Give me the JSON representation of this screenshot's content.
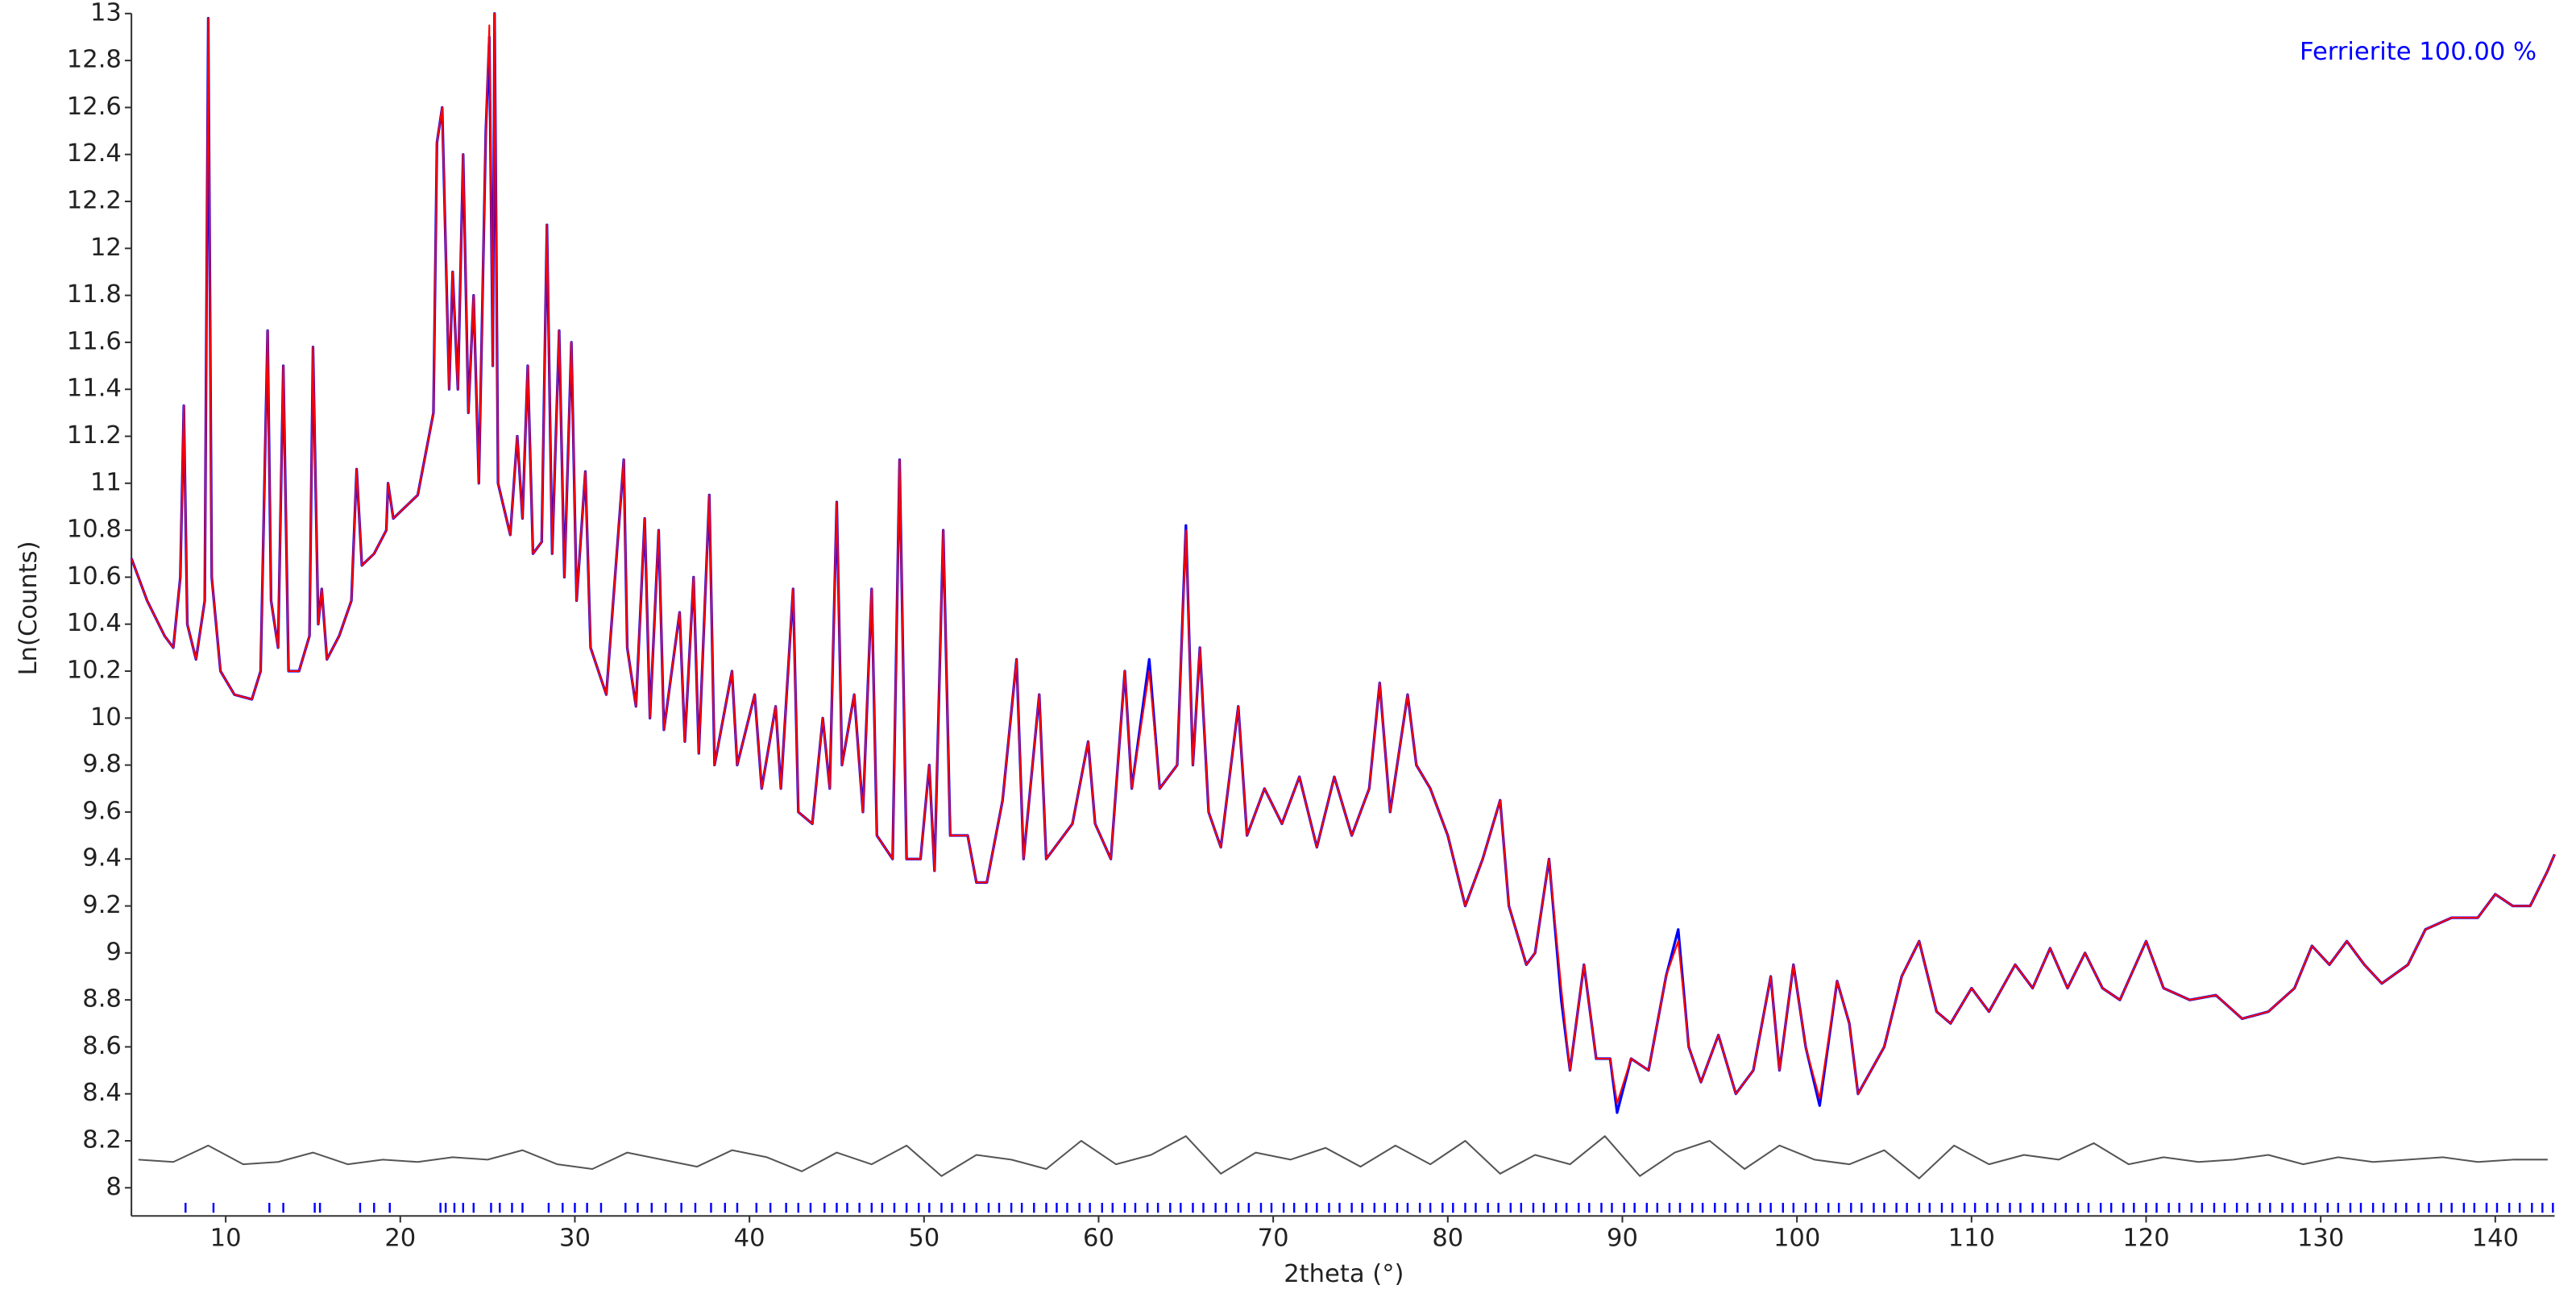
{
  "chart_data": {
    "type": "line",
    "legend_text": "Ferrierite 100.00 %",
    "legend_color": "#0000ff",
    "legend_position": "upper right",
    "xlabel": "2theta (°)",
    "ylabel": "Ln(Counts)",
    "xlim": [
      4.6,
      143.4
    ],
    "ylim": [
      7.88,
      13.0
    ],
    "xticks": [
      10,
      20,
      30,
      40,
      50,
      60,
      70,
      80,
      90,
      100,
      110,
      120,
      130,
      140
    ],
    "yticks": [
      8,
      8.2,
      8.4,
      8.6,
      8.8,
      9,
      9.2,
      9.4,
      9.6,
      9.8,
      10,
      10.2,
      10.4,
      10.6,
      10.8,
      11,
      11.2,
      11.4,
      11.6,
      11.8,
      12,
      12.2,
      12.4,
      12.6,
      12.8,
      13
    ],
    "x": [
      4.6,
      5.5,
      6.5,
      7.0,
      7.4,
      7.6,
      7.8,
      8.3,
      8.8,
      9.0,
      9.2,
      9.7,
      10.5,
      11.5,
      12.0,
      12.4,
      12.6,
      13.0,
      13.3,
      13.6,
      14.2,
      14.8,
      15.0,
      15.3,
      15.5,
      15.8,
      16.5,
      17.2,
      17.5,
      17.8,
      18.5,
      19.2,
      19.3,
      19.6,
      21.0,
      21.9,
      22.1,
      22.4,
      22.8,
      23.0,
      23.3,
      23.6,
      23.9,
      24.2,
      24.5,
      24.9,
      25.1,
      25.3,
      25.4,
      25.6,
      26.3,
      26.7,
      27.0,
      27.3,
      27.6,
      28.1,
      28.4,
      28.7,
      29.1,
      29.4,
      29.8,
      30.1,
      30.6,
      30.9,
      31.8,
      32.8,
      33.0,
      33.5,
      34.0,
      34.3,
      34.8,
      35.1,
      36.0,
      36.3,
      36.8,
      37.1,
      37.7,
      38.0,
      39.0,
      39.3,
      40.3,
      40.7,
      41.5,
      41.8,
      42.5,
      42.8,
      43.6,
      44.2,
      44.6,
      45.0,
      45.3,
      46.0,
      46.5,
      47.0,
      47.3,
      48.2,
      48.6,
      49.0,
      49.8,
      50.3,
      50.6,
      51.1,
      51.5,
      52.5,
      53.0,
      53.6,
      54.5,
      55.3,
      55.7,
      56.6,
      57.0,
      58.5,
      59.4,
      59.8,
      60.7,
      61.5,
      61.9,
      62.9,
      63.5,
      64.5,
      65.0,
      65.4,
      65.8,
      66.3,
      67.0,
      68.0,
      68.5,
      69.5,
      70.5,
      71.5,
      72.5,
      73.5,
      74.5,
      75.5,
      76.1,
      76.7,
      77.7,
      78.2,
      79.0,
      80.0,
      81.0,
      82.0,
      83.0,
      83.5,
      84.5,
      85.0,
      85.8,
      86.5,
      87.0,
      87.8,
      88.5,
      89.3,
      89.7,
      90.5,
      91.5,
      92.5,
      93.2,
      93.8,
      94.5,
      95.5,
      96.5,
      97.5,
      98.5,
      99.0,
      99.8,
      100.5,
      101.3,
      102.3,
      103.0,
      103.5,
      105.0,
      106.0,
      107.0,
      108.0,
      108.8,
      110.0,
      111.0,
      112.5,
      113.5,
      114.5,
      115.5,
      116.5,
      117.5,
      118.5,
      120.0,
      121.0,
      122.5,
      124.0,
      125.5,
      127.0,
      128.5,
      129.5,
      130.5,
      131.5,
      132.5,
      133.5,
      135.0,
      136.0,
      137.5,
      139.0,
      140.0,
      141.0,
      142.0,
      143.0,
      143.4
    ],
    "series": [
      {
        "color": "#0000ff",
        "values": [
          10.68,
          10.5,
          10.35,
          10.3,
          10.6,
          11.33,
          10.4,
          10.25,
          10.5,
          12.98,
          10.6,
          10.2,
          10.1,
          10.08,
          10.2,
          11.65,
          10.5,
          10.3,
          11.5,
          10.2,
          10.2,
          10.35,
          11.58,
          10.4,
          10.55,
          10.25,
          10.35,
          10.5,
          11.06,
          10.65,
          10.7,
          10.8,
          11.0,
          10.85,
          10.95,
          11.3,
          12.45,
          12.6,
          11.4,
          11.9,
          11.4,
          12.4,
          11.3,
          11.8,
          11.0,
          12.5,
          12.9,
          11.5,
          13.0,
          11.0,
          10.78,
          11.2,
          10.85,
          11.5,
          10.7,
          10.75,
          12.1,
          10.7,
          11.65,
          10.6,
          11.6,
          10.5,
          11.05,
          10.3,
          10.1,
          11.1,
          10.3,
          10.05,
          10.85,
          10.0,
          10.8,
          9.95,
          10.45,
          9.9,
          10.6,
          9.85,
          10.95,
          9.8,
          10.2,
          9.8,
          10.1,
          9.7,
          10.05,
          9.7,
          10.55,
          9.6,
          9.55,
          10.0,
          9.7,
          10.92,
          9.8,
          10.1,
          9.6,
          10.55,
          9.5,
          9.4,
          11.1,
          9.4,
          9.4,
          9.8,
          9.35,
          10.8,
          9.5,
          9.5,
          9.3,
          9.3,
          9.65,
          10.25,
          9.4,
          10.1,
          9.4,
          9.55,
          9.9,
          9.55,
          9.4,
          10.2,
          9.7,
          10.25,
          9.7,
          9.8,
          10.82,
          9.8,
          10.3,
          9.6,
          9.45,
          10.05,
          9.5,
          9.7,
          9.55,
          9.75,
          9.45,
          9.75,
          9.5,
          9.7,
          10.15,
          9.6,
          10.1,
          9.8,
          9.7,
          9.5,
          9.2,
          9.4,
          9.65,
          9.2,
          8.95,
          9.0,
          9.4,
          8.8,
          8.5,
          8.95,
          8.55,
          8.55,
          8.32,
          8.55,
          8.5,
          8.9,
          9.1,
          8.6,
          8.45,
          8.65,
          8.4,
          8.5,
          8.9,
          8.5,
          8.95,
          8.6,
          8.35,
          8.88,
          8.7,
          8.4,
          8.6,
          8.9,
          9.05,
          8.75,
          8.7,
          8.85,
          8.75,
          8.95,
          8.85,
          9.02,
          8.85,
          9.0,
          8.85,
          8.8,
          9.05,
          8.85,
          8.8,
          8.82,
          8.72,
          8.75,
          8.85,
          9.03,
          8.95,
          9.05,
          8.95,
          8.87,
          8.95,
          9.1,
          9.15,
          9.15,
          9.25,
          9.2,
          9.2,
          9.35,
          9.42
        ]
      },
      {
        "color": "#ff0000",
        "values": [
          10.68,
          10.5,
          10.35,
          10.3,
          10.6,
          11.33,
          10.4,
          10.25,
          10.5,
          12.98,
          10.6,
          10.2,
          10.1,
          10.08,
          10.2,
          11.65,
          10.5,
          10.3,
          11.5,
          10.2,
          10.2,
          10.35,
          11.58,
          10.4,
          10.55,
          10.25,
          10.35,
          10.5,
          11.06,
          10.65,
          10.7,
          10.8,
          11.0,
          10.85,
          10.95,
          11.3,
          12.45,
          12.6,
          11.4,
          11.9,
          11.4,
          12.4,
          11.3,
          11.8,
          11.0,
          12.5,
          12.95,
          11.5,
          13.0,
          11.0,
          10.78,
          11.2,
          10.85,
          11.5,
          10.7,
          10.75,
          12.1,
          10.7,
          11.65,
          10.6,
          11.6,
          10.5,
          11.05,
          10.3,
          10.1,
          11.1,
          10.3,
          10.05,
          10.85,
          10.0,
          10.8,
          9.95,
          10.45,
          9.9,
          10.6,
          9.85,
          10.95,
          9.8,
          10.2,
          9.8,
          10.1,
          9.7,
          10.05,
          9.7,
          10.55,
          9.6,
          9.55,
          10.0,
          9.7,
          10.92,
          9.8,
          10.1,
          9.6,
          10.55,
          9.5,
          9.4,
          11.1,
          9.4,
          9.4,
          9.8,
          9.35,
          10.8,
          9.5,
          9.5,
          9.3,
          9.3,
          9.65,
          10.25,
          9.4,
          10.1,
          9.4,
          9.55,
          9.9,
          9.55,
          9.4,
          10.2,
          9.7,
          10.2,
          9.7,
          9.8,
          10.8,
          9.8,
          10.3,
          9.6,
          9.45,
          10.05,
          9.5,
          9.7,
          9.55,
          9.75,
          9.45,
          9.75,
          9.5,
          9.7,
          10.15,
          9.6,
          10.1,
          9.8,
          9.7,
          9.5,
          9.2,
          9.4,
          9.65,
          9.2,
          8.95,
          9.0,
          9.4,
          8.85,
          8.5,
          8.95,
          8.55,
          8.55,
          8.36,
          8.55,
          8.5,
          8.9,
          9.05,
          8.6,
          8.45,
          8.65,
          8.4,
          8.5,
          8.9,
          8.5,
          8.95,
          8.6,
          8.38,
          8.88,
          8.7,
          8.4,
          8.6,
          8.9,
          9.05,
          8.75,
          8.7,
          8.85,
          8.75,
          8.95,
          8.85,
          9.02,
          8.85,
          9.0,
          8.85,
          8.8,
          9.05,
          8.85,
          8.8,
          8.82,
          8.72,
          8.75,
          8.85,
          9.03,
          8.95,
          9.05,
          8.95,
          8.87,
          8.95,
          9.1,
          9.15,
          9.15,
          9.25,
          9.2,
          9.2,
          9.35,
          9.42
        ]
      },
      {
        "color": "#555555",
        "x": [
          5,
          7,
          9,
          11,
          13,
          15,
          17,
          19,
          21,
          23,
          25,
          27,
          29,
          31,
          33,
          35,
          37,
          39,
          41,
          43,
          45,
          47,
          49,
          51,
          53,
          55,
          57,
          59,
          61,
          63,
          65,
          67,
          69,
          71,
          73,
          75,
          77,
          79,
          81,
          83,
          85,
          87,
          89,
          91,
          93,
          95,
          97,
          99,
          101,
          103,
          105,
          107,
          109,
          111,
          113,
          115,
          117,
          119,
          121,
          123,
          125,
          127,
          129,
          131,
          133,
          135,
          137,
          139,
          141,
          143
        ],
        "values": [
          8.12,
          8.11,
          8.18,
          8.1,
          8.11,
          8.15,
          8.1,
          8.12,
          8.11,
          8.13,
          8.12,
          8.16,
          8.1,
          8.08,
          8.15,
          8.12,
          8.09,
          8.16,
          8.13,
          8.07,
          8.15,
          8.1,
          8.18,
          8.05,
          8.14,
          8.12,
          8.08,
          8.2,
          8.1,
          8.14,
          8.22,
          8.06,
          8.15,
          8.12,
          8.17,
          8.09,
          8.18,
          8.1,
          8.2,
          8.06,
          8.14,
          8.1,
          8.22,
          8.05,
          8.15,
          8.2,
          8.08,
          8.18,
          8.12,
          8.1,
          8.16,
          8.04,
          8.18,
          8.1,
          8.14,
          8.12,
          8.19,
          8.1,
          8.13,
          8.11,
          8.12,
          8.14,
          8.1,
          8.13,
          8.11,
          8.12,
          8.13,
          8.11,
          8.12,
          8.12
        ]
      }
    ],
    "reflections": {
      "color": "#0000ff",
      "x": [
        7.7,
        9.3,
        12.5,
        13.3,
        15.1,
        15.4,
        17.7,
        18.5,
        19.4,
        22.3,
        22.6,
        23.1,
        23.6,
        24.2,
        25.2,
        25.7,
        26.4,
        27.0,
        28.5,
        29.3,
        30.0,
        30.7,
        31.5,
        32.9,
        33.6,
        34.4,
        35.2,
        36.1,
        36.9,
        37.8,
        38.6,
        39.3,
        40.4,
        41.2,
        42.1,
        42.8,
        43.5,
        44.3,
        45.0,
        45.6,
        46.3,
        47.0,
        47.6,
        48.3,
        49.0,
        49.7,
        50.3,
        51.0,
        51.6,
        52.3,
        53.0,
        53.7,
        54.3,
        55.0,
        55.6,
        56.3,
        57.0,
        57.6,
        58.2,
        58.9,
        59.5,
        60.2,
        60.8,
        61.5,
        62.1,
        62.8,
        63.4,
        64.1,
        64.7,
        65.4,
        66.0,
        66.7,
        67.3,
        68.0,
        68.6,
        69.3,
        69.9,
        70.6,
        71.2,
        71.9,
        72.5,
        73.2,
        73.8,
        74.5,
        75.1,
        75.8,
        76.4,
        77.1,
        77.7,
        78.4,
        79.0,
        79.7,
        80.3,
        81.0,
        81.6,
        82.3,
        82.9,
        83.6,
        84.2,
        84.9,
        85.5,
        86.2,
        86.8,
        87.5,
        88.1,
        88.8,
        89.4,
        90.1,
        90.7,
        91.4,
        92.0,
        92.7,
        93.3,
        94.0,
        94.6,
        95.3,
        95.9,
        96.6,
        97.2,
        97.9,
        98.5,
        99.2,
        99.8,
        100.5,
        101.1,
        101.8,
        102.4,
        103.1,
        103.7,
        104.4,
        105.0,
        105.7,
        106.3,
        107.0,
        107.6,
        108.3,
        108.9,
        109.6,
        110.2,
        110.9,
        111.5,
        112.2,
        112.8,
        113.5,
        114.1,
        114.8,
        115.4,
        116.1,
        116.7,
        117.4,
        118.0,
        118.7,
        119.3,
        120.0,
        120.6,
        121.3,
        121.9,
        122.6,
        123.2,
        123.9,
        124.5,
        125.2,
        125.8,
        126.5,
        127.1,
        127.8,
        128.4,
        129.1,
        129.7,
        130.4,
        131.0,
        131.7,
        132.3,
        133.0,
        133.6,
        134.3,
        134.9,
        135.6,
        136.2,
        136.9,
        137.5,
        138.2,
        138.8,
        139.5,
        140.1,
        140.8,
        141.4,
        142.1,
        142.7,
        143.3
      ]
    }
  }
}
